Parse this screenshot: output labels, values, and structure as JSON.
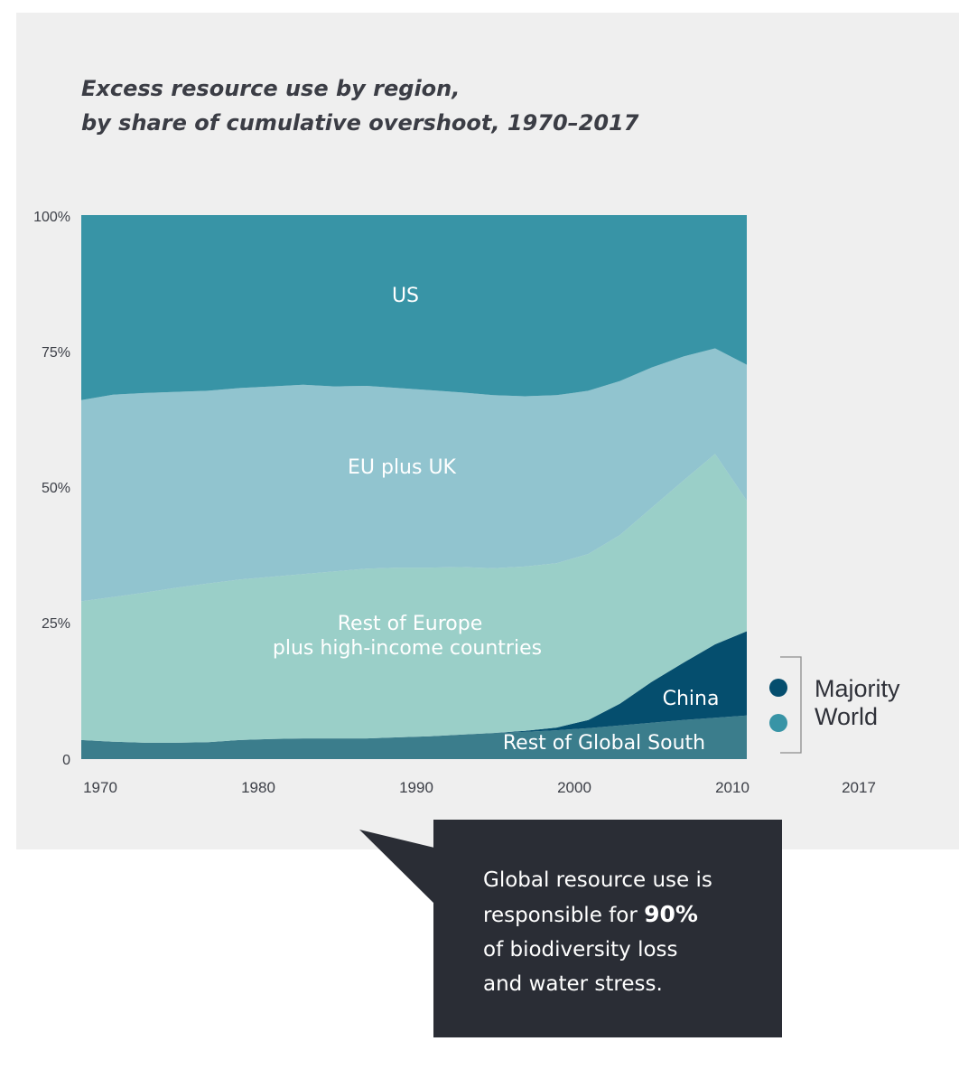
{
  "colors": {
    "panel_bg": "#efefef",
    "us": "#3894a6",
    "eu_uk": "#91c4cf",
    "rest_europe_high_income": "#9acfc8",
    "china": "#054e6e",
    "rest_global_south": "#3b7d8c",
    "callout_bg": "#2a2d35"
  },
  "legend": {
    "items": [
      {
        "label": "Majority",
        "color": "#054e6e"
      },
      {
        "label": "World",
        "color": "#3894a6"
      }
    ]
  },
  "callout": {
    "line1": "Global resource use is",
    "line2_prefix": "responsible for ",
    "line2_bold": "90%",
    "line3": "of biodiversity loss",
    "line4": "and water stress."
  },
  "chart_data": {
    "type": "area",
    "stacked": true,
    "title": "Excess resource use by region, by share of cumulative overshoot, 1970–2017",
    "title_lines": [
      "Excess resource use by region,",
      "by share of cumulative overshoot, 1970–2017"
    ],
    "xlabel": "",
    "ylabel": "",
    "xlim": [
      1970,
      2012
    ],
    "ylim": [
      0,
      100
    ],
    "x_ticks": [
      "1970",
      "1980",
      "1990",
      "2000",
      "2010",
      "2017"
    ],
    "y_ticks": [
      "100%",
      "75%",
      "50%",
      "25%",
      "0"
    ],
    "x": [
      1970,
      1972,
      1974,
      1976,
      1978,
      1980,
      1982,
      1984,
      1986,
      1988,
      1990,
      1992,
      1994,
      1996,
      1998,
      2000,
      2002,
      2004,
      2006,
      2008,
      2010,
      2012
    ],
    "series": [
      {
        "name": "Rest of Global South",
        "key": "rest_global_south",
        "label": "Rest of Global South",
        "values": [
          3.5,
          3.2,
          3.0,
          3.0,
          3.1,
          3.5,
          3.7,
          3.8,
          3.8,
          3.8,
          4.0,
          4.2,
          4.5,
          4.8,
          5.0,
          5.3,
          5.7,
          6.2,
          6.7,
          7.2,
          7.6,
          8.0
        ]
      },
      {
        "name": "China",
        "key": "china",
        "label": "China",
        "values": [
          0,
          0,
          0,
          0,
          0,
          0,
          0,
          0,
          0,
          0,
          0,
          0,
          0,
          0,
          0.2,
          0.5,
          1.5,
          4.0,
          7.5,
          10.5,
          13.5,
          15.5
        ]
      },
      {
        "name": "Rest of Europe plus high-income countries",
        "key": "rest_europe_high_income",
        "label": [
          "Rest of Europe",
          "plus high-income countries"
        ],
        "values": [
          25.5,
          26.6,
          27.6,
          28.5,
          29.2,
          29.5,
          29.8,
          30.2,
          30.7,
          31.2,
          31.2,
          31.0,
          30.8,
          30.3,
          30.2,
          30.2,
          30.5,
          31.0,
          32.0,
          33.5,
          35.0,
          24.0
        ]
      },
      {
        "name": "EU plus UK",
        "key": "eu_uk",
        "label": "EU plus UK",
        "values": [
          37.0,
          37.2,
          36.7,
          36.0,
          35.4,
          35.2,
          35.0,
          34.8,
          34.0,
          33.6,
          33.0,
          32.6,
          32.1,
          31.8,
          31.3,
          30.9,
          30.0,
          28.3,
          25.8,
          22.8,
          19.4,
          25.0
        ]
      },
      {
        "name": "US",
        "key": "us",
        "label": "US",
        "values": [
          34.0,
          33.0,
          32.7,
          32.5,
          32.3,
          31.8,
          31.5,
          31.2,
          31.5,
          31.4,
          31.8,
          32.2,
          32.6,
          33.1,
          33.3,
          33.1,
          32.3,
          30.5,
          28.0,
          26.0,
          24.5,
          27.5
        ]
      }
    ]
  }
}
